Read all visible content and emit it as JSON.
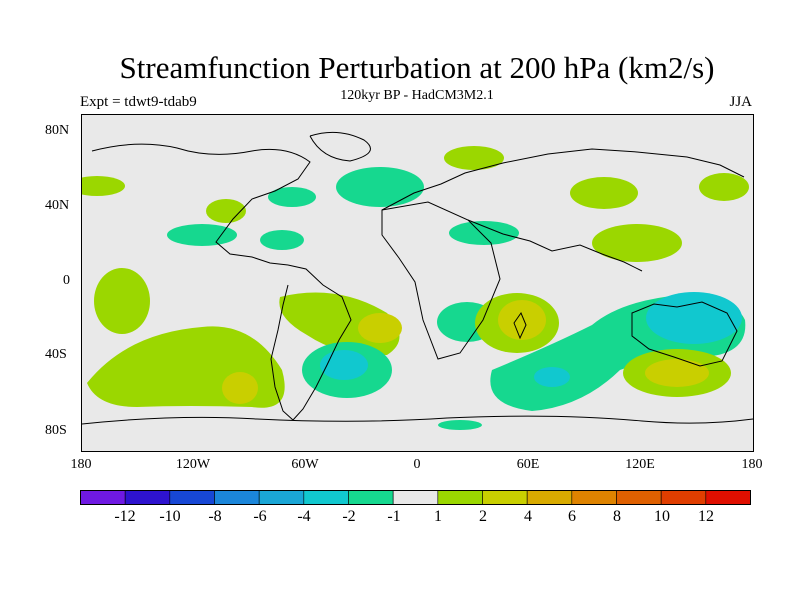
{
  "header": {
    "title": "Streamfunction Perturbation at 200 hPa (km2/s)",
    "subtitle": "120kyr BP - HadCM3M2.1",
    "left_label": "Expt = tdwt9-tdab9",
    "right_label": "JJA"
  },
  "axes": {
    "lat_ticks": [
      "80N",
      "40N",
      "0",
      "40S",
      "80S"
    ],
    "lon_ticks": [
      "180",
      "120W",
      "60W",
      "0",
      "60E",
      "120E",
      "180"
    ]
  },
  "colorbar": {
    "colors": [
      "#6f19e3",
      "#2e13cf",
      "#1747d5",
      "#1b86da",
      "#1aa6d6",
      "#11c8cf",
      "#16d88f",
      "#e9e9e9",
      "#9bd700",
      "#c9cf00",
      "#d9ab00",
      "#de8300",
      "#df6000",
      "#e03e00",
      "#e00f00"
    ],
    "labels": [
      "-12",
      "-10",
      "-8",
      "-6",
      "-4",
      "-2",
      "-1",
      "1",
      "2",
      "4",
      "6",
      "8",
      "10",
      "12"
    ]
  },
  "chart_data": {
    "type": "map",
    "field": "200 hPa streamfunction perturbation",
    "units": "km2/s",
    "season": "JJA",
    "lon_range": [
      -180,
      180
    ],
    "lat_range": [
      -90,
      90
    ],
    "contour_levels": [
      -12,
      -10,
      -8,
      -6,
      -4,
      -2,
      -1,
      1,
      2,
      4,
      6,
      8,
      10,
      12
    ],
    "background_color": "#e9e9e9",
    "coastlines": true
  }
}
